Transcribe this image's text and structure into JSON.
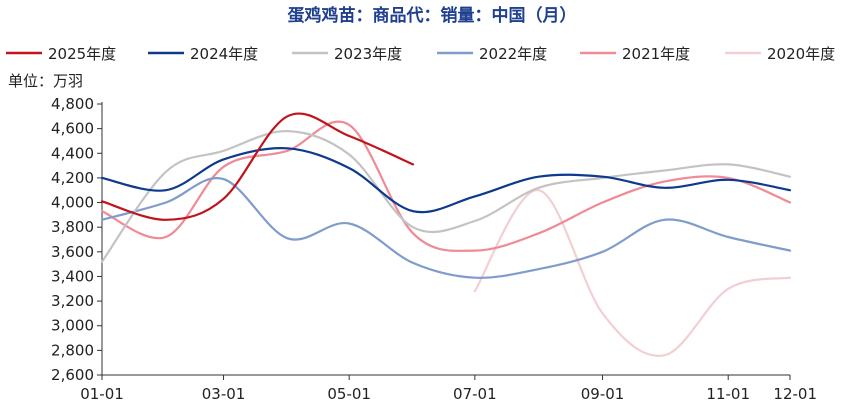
{
  "chart_data": {
    "type": "line",
    "title": "蛋鸡鸡苗：商品代：销量：中国（月）",
    "unit_label": "单位：万羽",
    "xlabel": "",
    "ylabel": "",
    "x_tick_labels": [
      "01-01",
      "03-01",
      "05-01",
      "07-01",
      "09-01",
      "11-01",
      "12-01"
    ],
    "x_tick_days": [
      0,
      59,
      120,
      181,
      243,
      304,
      334
    ],
    "y_tick_labels": [
      "2,600",
      "2,800",
      "3,000",
      "3,200",
      "3,400",
      "3,600",
      "3,800",
      "4,000",
      "4,200",
      "4,400",
      "4,600",
      "4,800"
    ],
    "ylim": [
      2600,
      4800
    ],
    "xlim": [
      "01-01",
      "12-01"
    ],
    "grid": false,
    "legend_position": "top",
    "series": [
      {
        "name": "2025年度",
        "color": "#c0141c",
        "x": [
          "01-01",
          "02-01",
          "03-01",
          "04-01",
          "05-01",
          "06-01"
        ],
        "y": [
          4010,
          3860,
          4030,
          4700,
          4540,
          4310
        ]
      },
      {
        "name": "2024年度",
        "color": "#0d3a8c",
        "x": [
          "01-01",
          "02-01",
          "03-01",
          "04-01",
          "05-01",
          "06-01",
          "07-01",
          "08-01",
          "09-01",
          "10-01",
          "11-01",
          "12-01"
        ],
        "y": [
          4200,
          4100,
          4350,
          4440,
          4280,
          3930,
          4050,
          4210,
          4210,
          4120,
          4185,
          4100
        ]
      },
      {
        "name": "2023年度",
        "color": "#c3c3c3",
        "x": [
          "01-01",
          "02-01",
          "03-01",
          "04-01",
          "05-01",
          "06-01",
          "07-01",
          "08-01",
          "09-01",
          "10-01",
          "11-01",
          "12-01"
        ],
        "y": [
          3520,
          4250,
          4420,
          4580,
          4390,
          3800,
          3850,
          4120,
          4200,
          4260,
          4310,
          4210
        ]
      },
      {
        "name": "2022年度",
        "color": "#7f9cca",
        "x": [
          "01-01",
          "02-01",
          "03-01",
          "04-01",
          "05-01",
          "06-01",
          "07-01",
          "08-01",
          "09-01",
          "10-01",
          "11-01",
          "12-01"
        ],
        "y": [
          3860,
          4000,
          4190,
          3710,
          3830,
          3510,
          3390,
          3460,
          3600,
          3860,
          3720,
          3610
        ]
      },
      {
        "name": "2021年度",
        "color": "#f08a96",
        "x": [
          "01-01",
          "02-01",
          "03-01",
          "04-01",
          "05-01",
          "06-01",
          "07-01",
          "08-01",
          "09-01",
          "10-01",
          "11-01",
          "12-01"
        ],
        "y": [
          3930,
          3720,
          4290,
          4420,
          4630,
          3750,
          3610,
          3750,
          4000,
          4170,
          4200,
          4000
        ]
      },
      {
        "name": "2020年度",
        "color": "#f2cfd3",
        "x": [
          "07-01",
          "08-01",
          "09-01",
          "10-01",
          "11-01",
          "12-01"
        ],
        "y": [
          3280,
          4100,
          3100,
          2760,
          3300,
          3390
        ]
      }
    ]
  }
}
